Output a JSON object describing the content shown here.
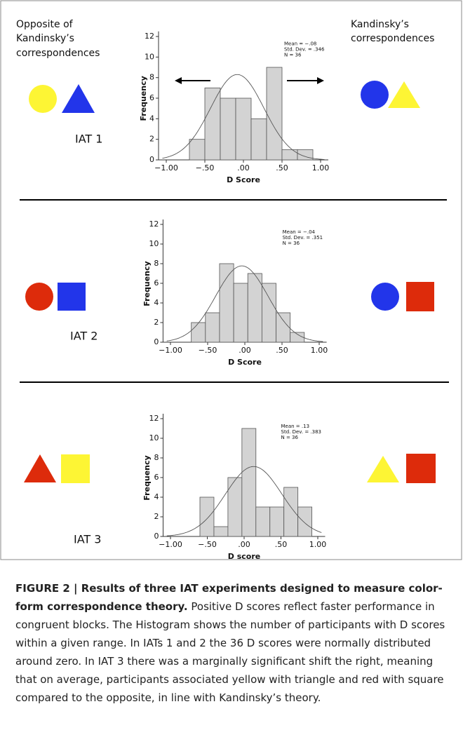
{
  "chart_data": [
    {
      "type": "histogram",
      "bins": [
        -0.7,
        -0.5,
        -0.3,
        -0.1,
        0.1,
        0.3,
        0.5,
        0.7,
        0.9
      ],
      "values": [
        2,
        7,
        6,
        6,
        4,
        9,
        1,
        1
      ],
      "color": "#d3d3d3",
      "xlabel": "D Score",
      "ylabel": "Frequency",
      "xlim": [
        -1.1,
        1.1
      ],
      "ylim": [
        0,
        12.5
      ],
      "xticks": [
        {
          "value": -1,
          "label": "−1.00"
        },
        {
          "value": -0.5,
          "label": "−.50"
        },
        {
          "value": 0,
          "label": ".00"
        },
        {
          "value": 0.5,
          "label": ".50"
        },
        {
          "value": 1,
          "label": "1.00"
        }
      ],
      "yticks": [
        0,
        2,
        4,
        6,
        8,
        10,
        12
      ],
      "annotations": [
        "Mean = −.08",
        "Std. Dev. = .346",
        "N = 36"
      ],
      "normal_curve": {
        "mean": -0.08,
        "sd": 0.346
      }
    },
    {
      "type": "histogram",
      "bins": [
        -0.72,
        -0.53,
        -0.34,
        -0.15,
        0.04,
        0.23,
        0.42,
        0.61,
        0.8
      ],
      "values": [
        2,
        3,
        8,
        6,
        7,
        6,
        3,
        1
      ],
      "color": "#d3d3d3",
      "xlabel": "D Score",
      "ylabel": "Frequency",
      "xlim": [
        -1.1,
        1.1
      ],
      "ylim": [
        0,
        12.5
      ],
      "xticks": [
        {
          "value": -1,
          "label": "−1.00"
        },
        {
          "value": -0.5,
          "label": "−.50"
        },
        {
          "value": 0,
          "label": ".00"
        },
        {
          "value": 0.5,
          "label": ".50"
        },
        {
          "value": 1,
          "label": "1.00"
        }
      ],
      "yticks": [
        0,
        2,
        4,
        6,
        8,
        10,
        12
      ],
      "annotations": [
        "Mean = −.04",
        "Std. Dev. = .351",
        "N = 36"
      ],
      "normal_curve": {
        "mean": -0.04,
        "sd": 0.351
      }
    },
    {
      "type": "histogram",
      "bins": [
        -0.6,
        -0.41,
        -0.22,
        -0.03,
        0.16,
        0.35,
        0.54,
        0.73,
        0.92
      ],
      "values": [
        4,
        1,
        6,
        11,
        3,
        3,
        5,
        3
      ],
      "color": "#d3d3d3",
      "xlabel": "D score",
      "ylabel": "Frequency",
      "xlim": [
        -1.1,
        1.1
      ],
      "ylim": [
        0,
        12.5
      ],
      "xticks": [
        {
          "value": -1,
          "label": "−1.00"
        },
        {
          "value": -0.5,
          "label": "−.50"
        },
        {
          "value": 0,
          "label": ".00"
        },
        {
          "value": 0.5,
          "label": ".50"
        },
        {
          "value": 1,
          "label": "1.00"
        }
      ],
      "yticks": [
        0,
        2,
        4,
        6,
        8,
        10,
        12
      ],
      "annotations": [
        "Mean = .13",
        "Std. Dev. = .383",
        "N = 36"
      ],
      "normal_curve": {
        "mean": 0.13,
        "sd": 0.383
      }
    }
  ],
  "header": {
    "left_lines": [
      "Opposite of",
      "Kandinsky’s",
      "correspondences"
    ],
    "right_lines": [
      "Kandinsky’s",
      "correspondences"
    ]
  },
  "panels": [
    {
      "label": "IAT 1"
    },
    {
      "label": "IAT 2"
    },
    {
      "label": "IAT 3"
    }
  ],
  "caption": {
    "title": "FIGURE 2 | Results of three IAT experiments designed to measure color-form correspondence theory.",
    "text": "Positive D scores reflect faster performance in congruent blocks. The Histogram shows the number of participants with D scores within a given range. In IATs 1 and 2 the 36 D scores were normally distributed around zero. In IAT 3 there was a marginally significant shift the right, meaning that on average, participants associated yellow with triangle and red with square compared to the opposite, in line with Kandinsky’s theory."
  }
}
